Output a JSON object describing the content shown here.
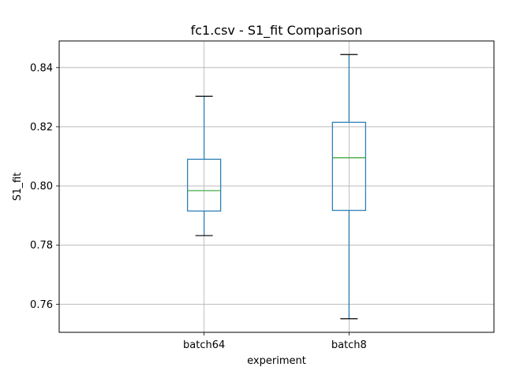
{
  "chart_data": {
    "type": "boxplot",
    "title": "fc1.csv - S1_fit Comparison",
    "xlabel": "experiment",
    "ylabel": "S1_fit",
    "categories": [
      "batch64",
      "batch8"
    ],
    "boxes": [
      {
        "category": "batch64",
        "whisker_low": 0.7832,
        "q1": 0.7915,
        "median": 0.7984,
        "q3": 0.809,
        "whisker_high": 0.8303
      },
      {
        "category": "batch8",
        "whisker_low": 0.7551,
        "q1": 0.7917,
        "median": 0.8095,
        "q3": 0.8215,
        "whisker_high": 0.8444
      }
    ],
    "ylim": [
      0.7505,
      0.849
    ],
    "yticks": [
      0.76,
      0.78,
      0.8,
      0.82,
      0.84
    ],
    "ytick_labels": [
      "0.76",
      "0.78",
      "0.80",
      "0.82",
      "0.84"
    ],
    "grid": true,
    "colors": {
      "box": "#1f77b4",
      "median": "#2ca02c",
      "cap": "#000000",
      "grid": "#b0b0b0"
    }
  }
}
